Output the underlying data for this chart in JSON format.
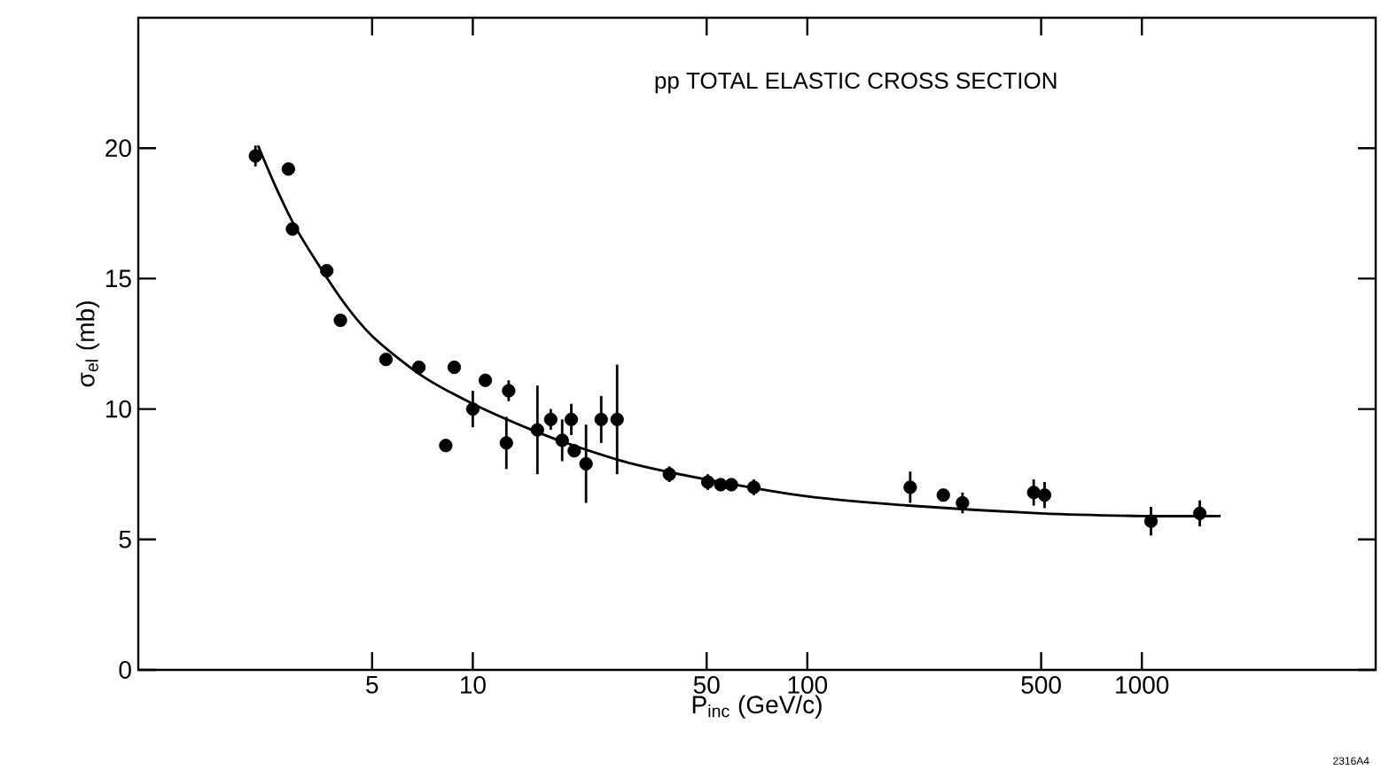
{
  "chart_data": {
    "type": "scatter",
    "title": "pp TOTAL ELASTIC CROSS SECTION",
    "xlabel": "P$_{inc}$ (GeV/c)",
    "ylabel": "σ$_{el}$ (mb)",
    "annotations": [
      "2316A4"
    ],
    "log": "x",
    "xlim": [
      1,
      5000
    ],
    "ylim": [
      0,
      25
    ],
    "xticks": [
      5,
      10,
      50,
      100,
      500,
      1000
    ],
    "yticks": [
      0,
      5,
      10,
      15,
      20
    ],
    "grid": false,
    "series": [
      {
        "marker": "circle",
        "color": "#000000",
        "x": [
          2.24,
          2.81,
          2.89,
          3.66,
          4.02,
          5.5,
          6.9,
          8.8,
          8.3,
          10.0,
          10.9,
          12.8,
          12.6,
          15.6,
          17.1,
          19.7,
          18.5,
          20.1,
          21.8,
          24.2,
          27.0,
          38.7,
          50.4,
          55.1,
          59.3,
          69.2,
          203,
          255,
          291,
          475,
          512,
          1065,
          1490
        ],
        "values": [
          19.7,
          19.2,
          16.9,
          15.3,
          13.4,
          11.9,
          11.6,
          11.6,
          8.6,
          10.0,
          11.1,
          10.7,
          8.7,
          9.2,
          9.6,
          9.6,
          8.8,
          8.4,
          7.9,
          9.6,
          9.6,
          7.5,
          7.2,
          7.1,
          7.1,
          7.0,
          7.0,
          6.7,
          6.4,
          6.8,
          6.7,
          5.7,
          6.0
        ],
        "errors": [
          0.4,
          null,
          null,
          null,
          null,
          null,
          null,
          null,
          null,
          0.7,
          null,
          0.4,
          1.0,
          1.7,
          0.4,
          0.6,
          0.8,
          null,
          1.5,
          0.9,
          2.1,
          0.3,
          0.3,
          null,
          null,
          0.3,
          0.6,
          null,
          0.4,
          0.5,
          0.5,
          0.55,
          0.5
        ]
      },
      {
        "type": "line",
        "marker": "none",
        "color": "#000000",
        "x": [
          2.28,
          2.6,
          3,
          4,
          5,
          7,
          10,
          15,
          20,
          30,
          50,
          100,
          200,
          500,
          1000,
          1720
        ],
        "values": [
          20.1,
          18.4,
          16.8,
          14.3,
          12.8,
          11.3,
          10.2,
          9.2,
          8.6,
          7.9,
          7.3,
          6.65,
          6.3,
          6.0,
          5.9,
          5.9
        ]
      }
    ]
  }
}
